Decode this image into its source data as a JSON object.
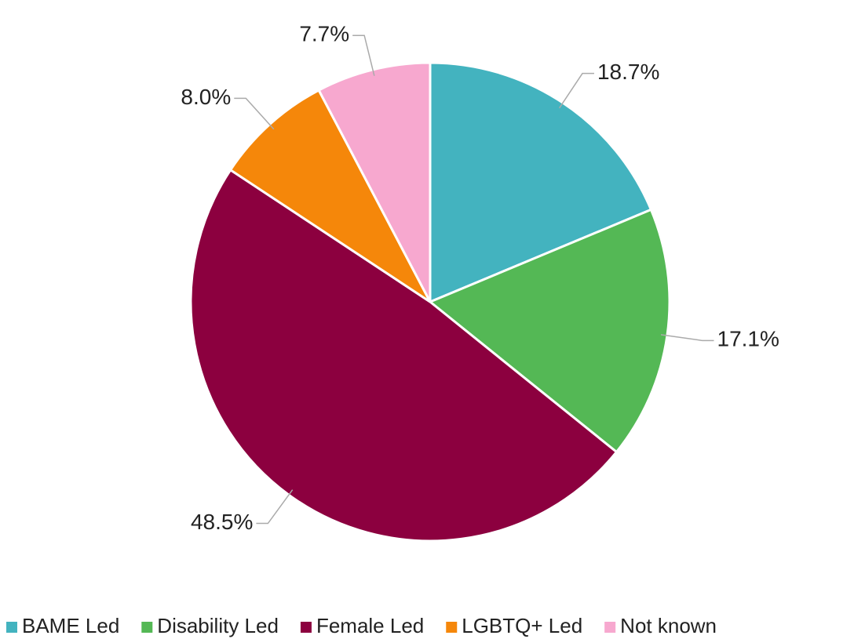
{
  "chart_data": {
    "type": "pie",
    "categories": [
      "BAME Led",
      "Disability Led",
      "Female Led",
      "LGBTQ+ Led",
      "Not known"
    ],
    "values": [
      18.7,
      17.1,
      48.5,
      8.0,
      7.7
    ],
    "value_labels": [
      "18.7%",
      "17.1%",
      "48.5%",
      "8.0%",
      "7.7%"
    ],
    "colors": [
      "#43b3bf",
      "#54b855",
      "#8c003f",
      "#f5870a",
      "#f7a8cf"
    ],
    "legend": "bottom"
  }
}
